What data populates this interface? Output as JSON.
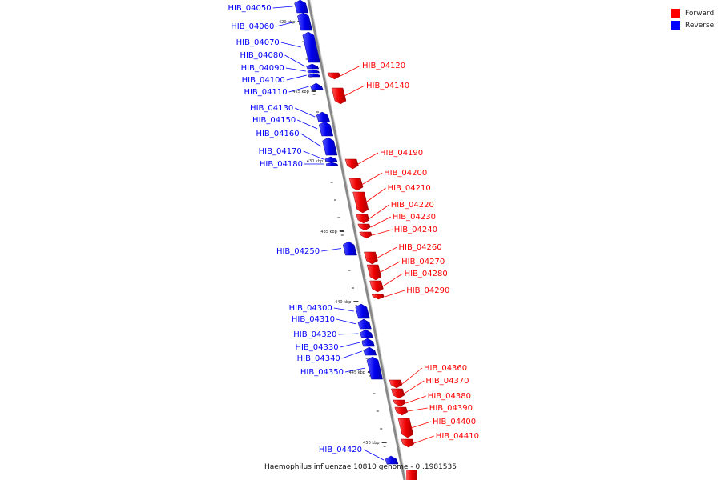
{
  "title": "Haemophilus influenzae 10810 genome - 0..1981535",
  "legend": [
    {
      "label": "Forward",
      "color": "#ff0000"
    },
    {
      "label": "Reverse",
      "color": "#0000ff"
    }
  ],
  "colors": {
    "forward": "#ff0000",
    "reverse": "#0000ff",
    "backbone": "#888888"
  },
  "ticks": [
    "420 kbp",
    "425 kbp",
    "430 kbp",
    "435 kbp",
    "440 kbp",
    "445 kbp",
    "450 kbp"
  ],
  "genes": [
    {
      "name": "HIB_04050",
      "strand": "reverse"
    },
    {
      "name": "HIB_04060",
      "strand": "reverse"
    },
    {
      "name": "HIB_04070",
      "strand": "reverse"
    },
    {
      "name": "HIB_04080",
      "strand": "reverse"
    },
    {
      "name": "HIB_04090",
      "strand": "reverse"
    },
    {
      "name": "HIB_04100",
      "strand": "reverse"
    },
    {
      "name": "HIB_04110",
      "strand": "reverse"
    },
    {
      "name": "HIB_04120",
      "strand": "forward"
    },
    {
      "name": "HIB_04130",
      "strand": "reverse"
    },
    {
      "name": "HIB_04140",
      "strand": "forward"
    },
    {
      "name": "HIB_04150",
      "strand": "reverse"
    },
    {
      "name": "HIB_04160",
      "strand": "reverse"
    },
    {
      "name": "HIB_04170",
      "strand": "reverse"
    },
    {
      "name": "HIB_04180",
      "strand": "reverse"
    },
    {
      "name": "HIB_04190",
      "strand": "forward"
    },
    {
      "name": "HIB_04200",
      "strand": "forward"
    },
    {
      "name": "HIB_04210",
      "strand": "forward"
    },
    {
      "name": "HIB_04220",
      "strand": "forward"
    },
    {
      "name": "HIB_04230",
      "strand": "forward"
    },
    {
      "name": "HIB_04240",
      "strand": "forward"
    },
    {
      "name": "HIB_04250",
      "strand": "reverse"
    },
    {
      "name": "HIB_04260",
      "strand": "forward"
    },
    {
      "name": "HIB_04270",
      "strand": "forward"
    },
    {
      "name": "HIB_04280",
      "strand": "forward"
    },
    {
      "name": "HIB_04290",
      "strand": "forward"
    },
    {
      "name": "HIB_04300",
      "strand": "reverse"
    },
    {
      "name": "HIB_04310",
      "strand": "reverse"
    },
    {
      "name": "HIB_04320",
      "strand": "reverse"
    },
    {
      "name": "HIB_04330",
      "strand": "reverse"
    },
    {
      "name": "HIB_04340",
      "strand": "reverse"
    },
    {
      "name": "HIB_04350",
      "strand": "reverse"
    },
    {
      "name": "HIB_04360",
      "strand": "forward"
    },
    {
      "name": "HIB_04370",
      "strand": "forward"
    },
    {
      "name": "HIB_04380",
      "strand": "forward"
    },
    {
      "name": "HIB_04390",
      "strand": "forward"
    },
    {
      "name": "HIB_04400",
      "strand": "forward"
    },
    {
      "name": "HIB_04410",
      "strand": "forward"
    },
    {
      "name": "HIB_04420",
      "strand": "reverse"
    }
  ]
}
